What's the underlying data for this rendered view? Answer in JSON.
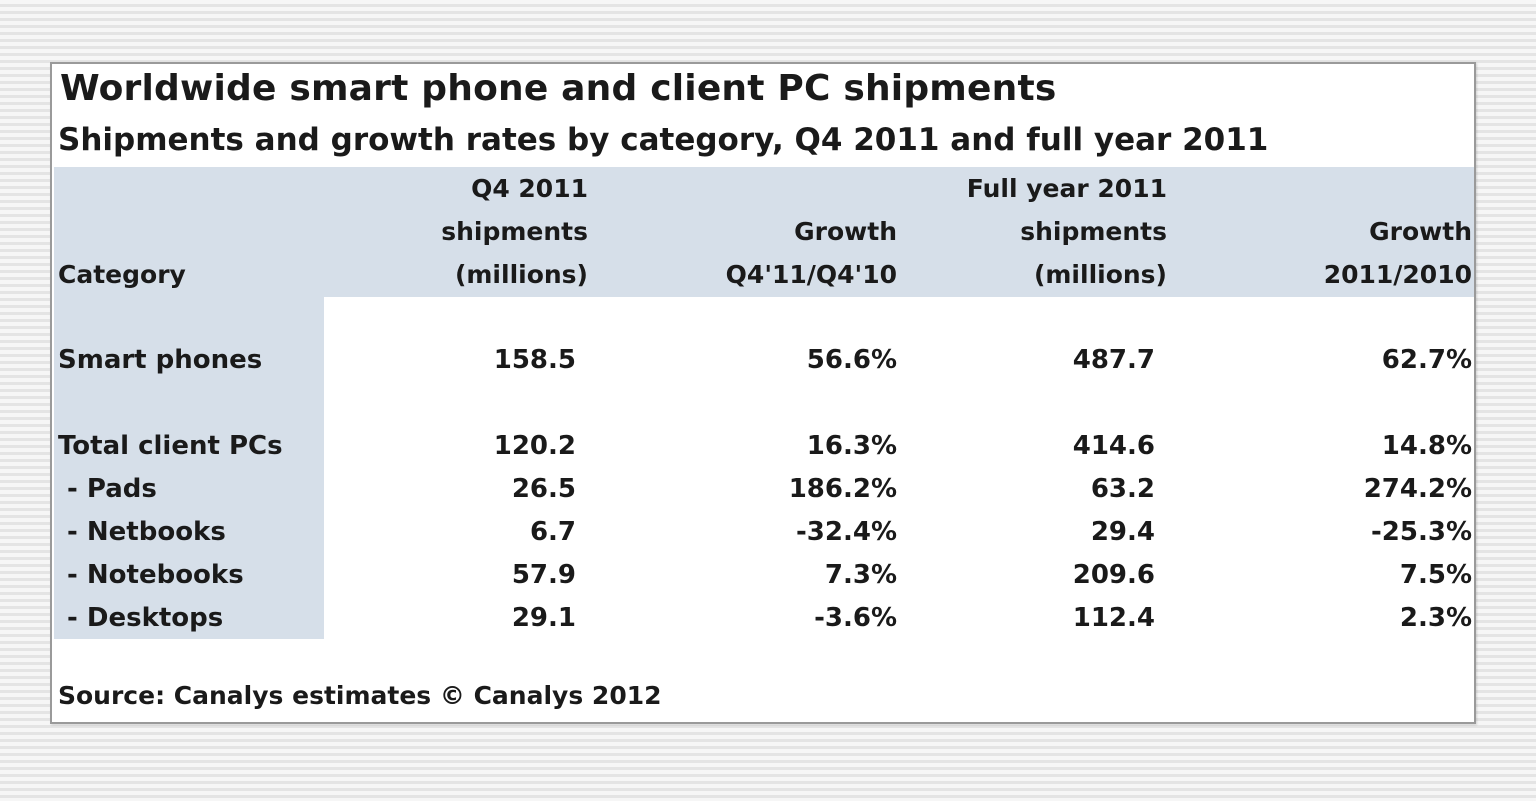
{
  "chart_data": {
    "type": "table",
    "title": "Worldwide smart phone and client PC shipments",
    "subtitle": "Shipments and growth rates by category, Q4 2011 and full year 2011",
    "columns": [
      {
        "lines": [
          "",
          "",
          "Category"
        ]
      },
      {
        "lines": [
          "Q4 2011",
          "shipments",
          "(millions)"
        ]
      },
      {
        "lines": [
          "",
          "Growth",
          "Q4'11/Q4'10"
        ]
      },
      {
        "lines": [
          "Full year 2011",
          "shipments",
          "(millions)"
        ]
      },
      {
        "lines": [
          "",
          "Growth",
          "2011/2010"
        ]
      }
    ],
    "rows": [
      {
        "category": "Smart phones",
        "q4_shipments": "158.5",
        "q4_growth": "56.6%",
        "fy_shipments": "487.7",
        "fy_growth": "62.7%"
      },
      {
        "category": "Total client PCs",
        "q4_shipments": "120.2",
        "q4_growth": "16.3%",
        "fy_shipments": "414.6",
        "fy_growth": "14.8%"
      },
      {
        "category": " - Pads",
        "q4_shipments": "26.5",
        "q4_growth": "186.2%",
        "fy_shipments": "63.2",
        "fy_growth": "274.2%"
      },
      {
        "category": " - Netbooks",
        "q4_shipments": "6.7",
        "q4_growth": "-32.4%",
        "fy_shipments": "29.4",
        "fy_growth": "-25.3%"
      },
      {
        "category": " - Notebooks",
        "q4_shipments": "57.9",
        "q4_growth": "7.3%",
        "fy_shipments": "209.6",
        "fy_growth": "7.5%"
      },
      {
        "category": " - Desktops",
        "q4_shipments": "29.1",
        "q4_growth": "-3.6%",
        "fy_shipments": "112.4",
        "fy_growth": "2.3%"
      }
    ],
    "source": "Source: Canalys estimates © Canalys 2012",
    "header_band_color": "#d6dfe9"
  }
}
